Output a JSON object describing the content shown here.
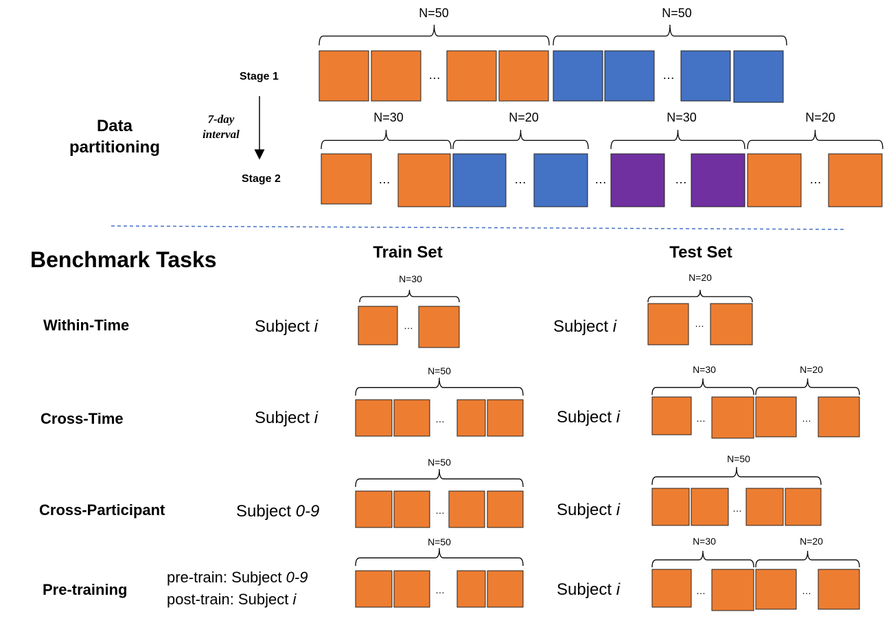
{
  "colors": {
    "orange": "#ED7D31",
    "blue": "#4472C4",
    "purple": "#7030A0",
    "divider": "#4472C4"
  },
  "top": {
    "section_label": "Data\npartitioning",
    "interval_label": "7-day\ninterval",
    "stage1": {
      "label": "Stage 1",
      "groups": [
        {
          "count_label": "N=50",
          "color": "orange"
        },
        {
          "count_label": "N=50",
          "color": "blue"
        }
      ],
      "ellipsis": "…"
    },
    "stage2": {
      "label": "Stage 2",
      "groups": [
        {
          "count_label": "N=30",
          "color": "orange"
        },
        {
          "count_label": "N=20",
          "color": "blue"
        },
        {
          "count_label": "N=30",
          "color": "purple"
        },
        {
          "count_label": "N=20",
          "color": "orange"
        }
      ],
      "ellipsis": "…"
    }
  },
  "benchmark": {
    "title": "Benchmark Tasks",
    "train_header": "Train Set",
    "test_header": "Test Set",
    "tasks": [
      {
        "name": "Within-Time",
        "train_subject": [
          {
            "text": "Subject "
          },
          {
            "text": "i",
            "italic": true
          }
        ],
        "train_counts": [
          "N=30"
        ],
        "test_subject": [
          {
            "text": "Subject "
          },
          {
            "text": "i",
            "italic": true
          }
        ],
        "test_counts": [
          "N=20"
        ]
      },
      {
        "name": "Cross-Time",
        "train_subject": [
          {
            "text": "Subject "
          },
          {
            "text": "i",
            "italic": true
          }
        ],
        "train_counts": [
          "N=50"
        ],
        "test_subject": [
          {
            "text": "Subject "
          },
          {
            "text": "i",
            "italic": true
          }
        ],
        "test_counts": [
          "N=30",
          "N=20"
        ]
      },
      {
        "name": "Cross-Participant",
        "train_subject": [
          {
            "text": "Subject "
          },
          {
            "text": "0-9",
            "italic": true
          }
        ],
        "train_counts": [
          "N=50"
        ],
        "test_subject": [
          {
            "text": "Subject "
          },
          {
            "text": "i",
            "italic": true
          }
        ],
        "test_counts": [
          "N=50"
        ]
      },
      {
        "name": "Pre-training",
        "train_subject_lines": [
          [
            {
              "text": "pre-train: Subject "
            },
            {
              "text": "0-9",
              "italic": true
            }
          ],
          [
            {
              "text": "post-train: Subject "
            },
            {
              "text": "i",
              "italic": true
            }
          ]
        ],
        "train_counts": [
          "N=50"
        ],
        "test_subject": [
          {
            "text": "Subject "
          },
          {
            "text": "i",
            "italic": true
          }
        ],
        "test_counts": [
          "N=30",
          "N=20"
        ]
      }
    ],
    "ellipsis": "…"
  }
}
